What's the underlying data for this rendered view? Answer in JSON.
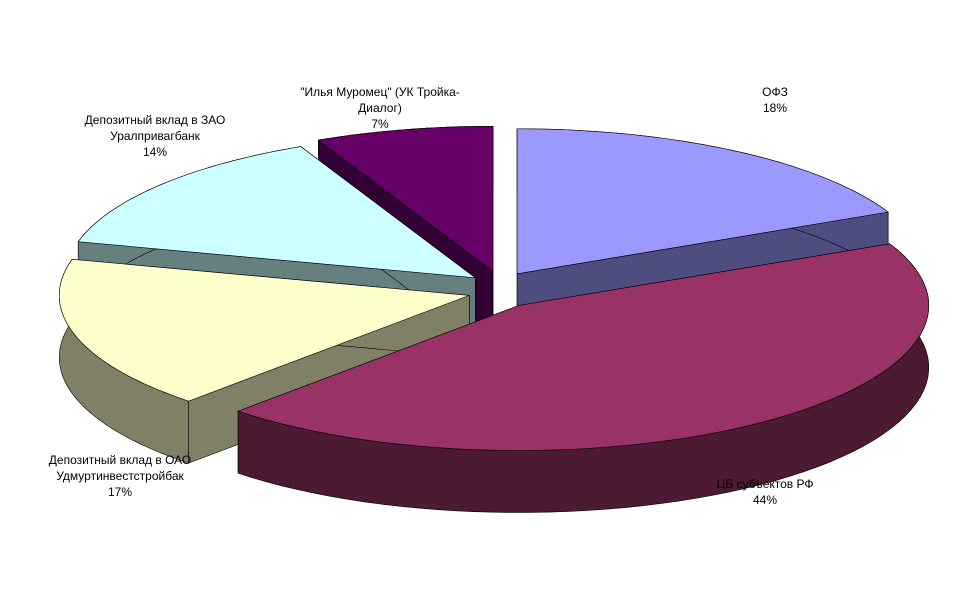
{
  "chart_data": {
    "type": "pie3d",
    "categories": [
      "ОФЗ",
      "ЦБ субъектов РФ",
      "Депозитный вклад в ОАО Удмуртинвестстройбак",
      "Депозитный вклад в ЗАО Уралпривагбанк",
      "\"Илья Муромец\" (УК Тройка-Диалог)"
    ],
    "values": [
      18,
      44,
      17,
      14,
      7
    ],
    "value_labels": [
      "18%",
      "44%",
      "17%",
      "14%",
      "7%"
    ],
    "colors": [
      "#9999ff",
      "#993366",
      "#ffffcc",
      "#ccffff",
      "#660066"
    ]
  }
}
